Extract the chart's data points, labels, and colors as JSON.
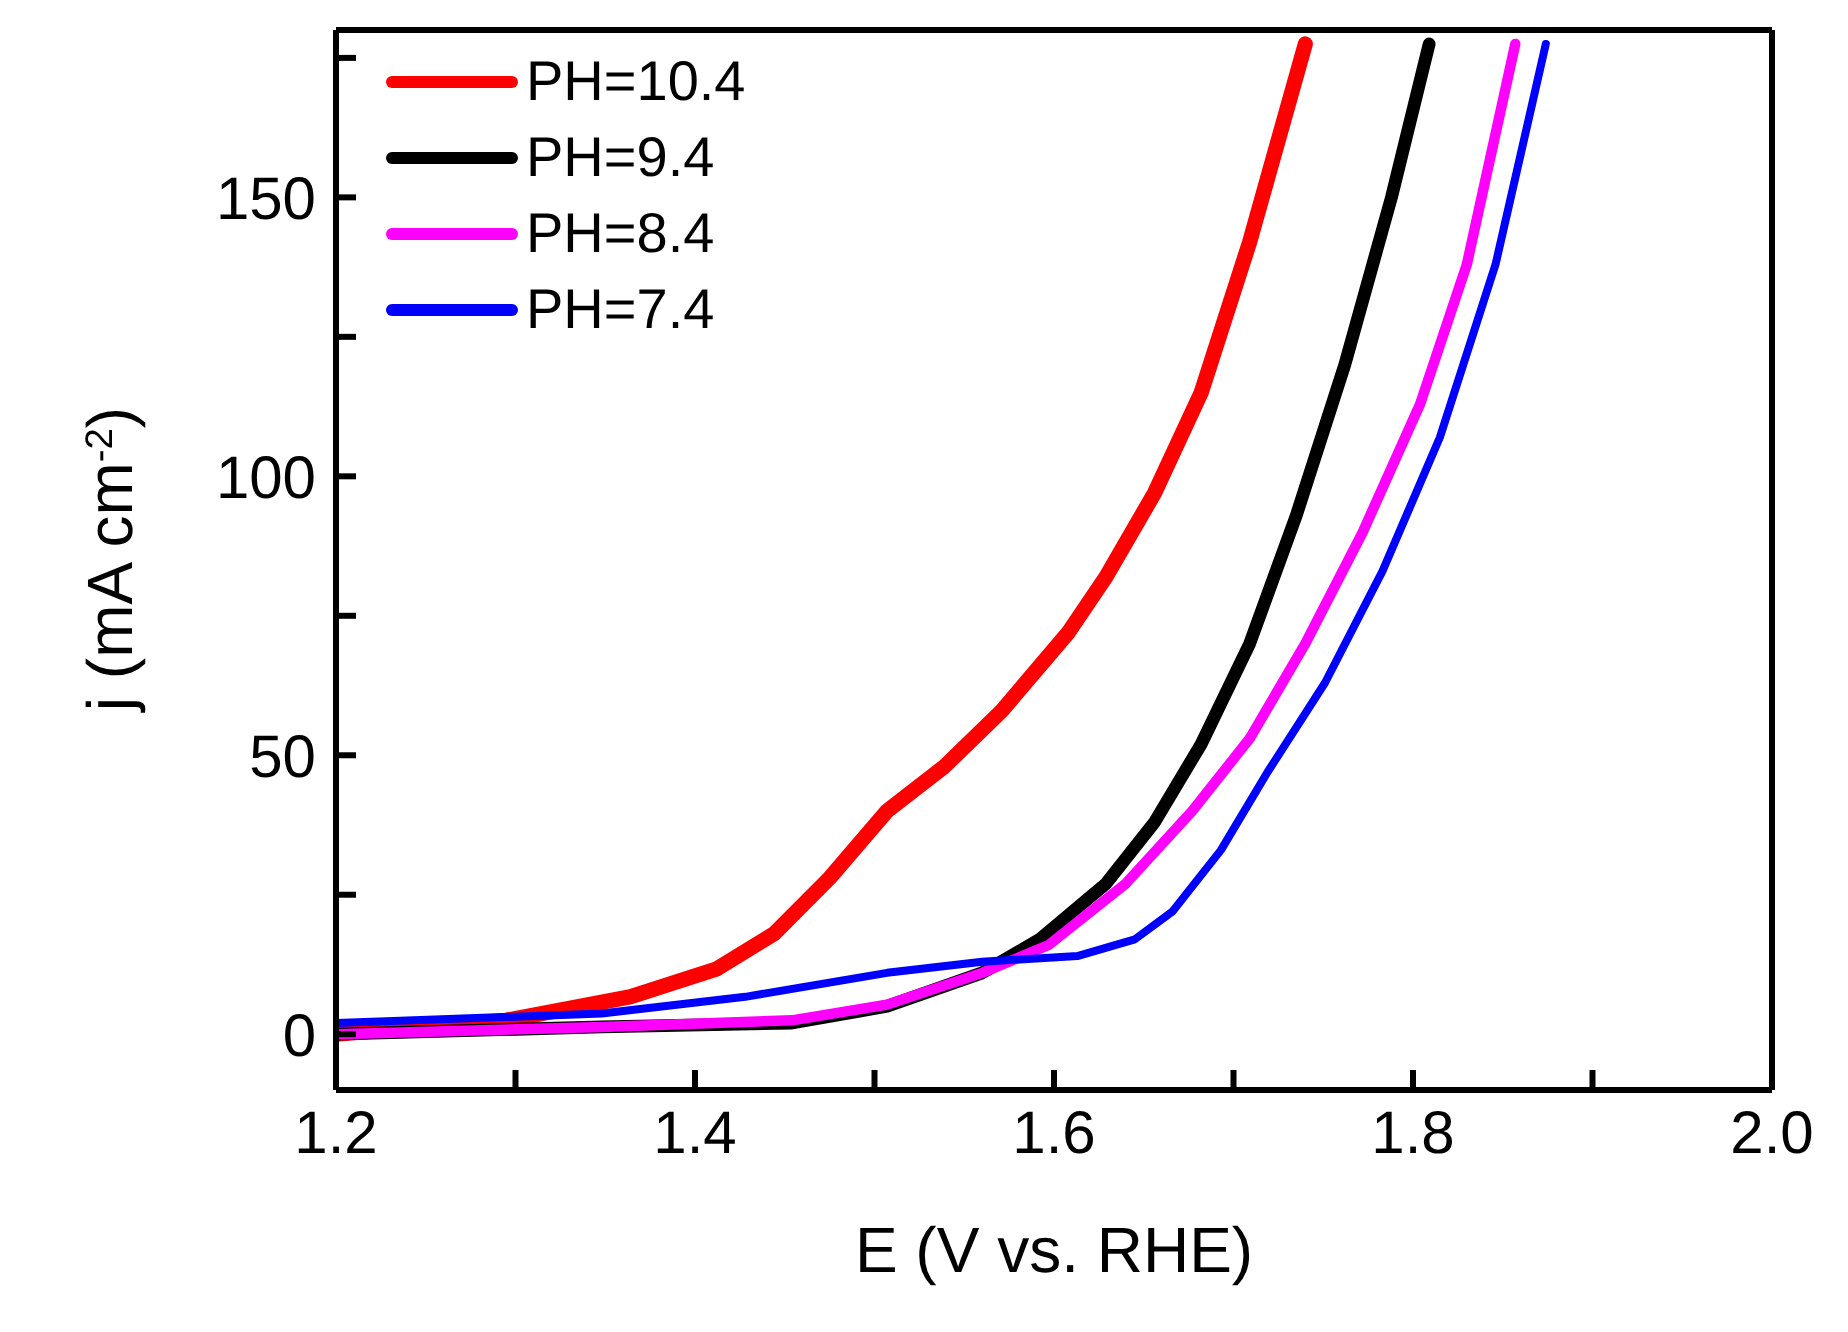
{
  "chart_data": {
    "type": "line",
    "xlabel": "E (V vs. RHE)",
    "ylabel": "j (mA cm$^{-2}$)",
    "xlim": [
      1.2,
      2.0
    ],
    "ylim": [
      -10,
      180
    ],
    "xticks": [
      1.2,
      {
        "value": 1.3,
        "label": null
      },
      1.4,
      {
        "value": 1.5,
        "label": null
      },
      1.6,
      {
        "value": 1.7,
        "label": null
      },
      1.8,
      {
        "value": 1.9,
        "label": null
      },
      {
        "value": 2.0,
        "label": "2.0"
      }
    ],
    "yticks": [
      0,
      {
        "value": 25,
        "label": null
      },
      50,
      {
        "value": 75,
        "label": null
      },
      100,
      {
        "value": 125,
        "label": null
      },
      150,
      {
        "value": 175,
        "label": null
      }
    ],
    "grid": false,
    "legend": "top left",
    "marker": "none",
    "line_style": "solid",
    "series": [
      {
        "name": "PH=10.4",
        "color": "#ff0000",
        "x": [
          1.2,
          1.295,
          1.364,
          1.412,
          1.444,
          1.475,
          1.507,
          1.539,
          1.571,
          1.608,
          1.629,
          1.656,
          1.682,
          1.709,
          1.74
        ],
        "values": [
          0,
          2.5,
          6.7,
          11.7,
          18,
          28,
          40,
          48,
          58,
          72,
          82,
          97,
          115,
          142,
          177.5
        ]
      },
      {
        "name": "PH=9.4",
        "color": "#000000",
        "x": [
          1.2,
          1.348,
          1.454,
          1.507,
          1.56,
          1.592,
          1.629,
          1.656,
          1.682,
          1.709,
          1.735,
          1.762,
          1.788,
          1.809
        ],
        "values": [
          0,
          1.3,
          2,
          5,
          11,
          17,
          27,
          38,
          52,
          70,
          93,
          120,
          150,
          177.5
        ]
      },
      {
        "name": "PH=8.4",
        "color": "#ff00ff",
        "x": [
          1.2,
          1.348,
          1.454,
          1.507,
          1.56,
          1.597,
          1.64,
          1.677,
          1.709,
          1.74,
          1.772,
          1.804,
          1.83,
          1.857
        ],
        "values": [
          0,
          1.3,
          2.5,
          5.3,
          11,
          16,
          27,
          40,
          53,
          70,
          90,
          113,
          138,
          177.5
        ]
      },
      {
        "name": "PH=7.4",
        "color": "#0000ff",
        "x": [
          1.2,
          1.348,
          1.428,
          1.507,
          1.56,
          1.613,
          1.645,
          1.666,
          1.693,
          1.719,
          1.751,
          1.783,
          1.815,
          1.846,
          1.874
        ],
        "values": [
          2,
          3.7,
          6.7,
          11,
          13,
          14,
          17,
          22,
          33,
          47,
          63,
          83,
          107,
          138,
          177.5
        ]
      }
    ]
  }
}
